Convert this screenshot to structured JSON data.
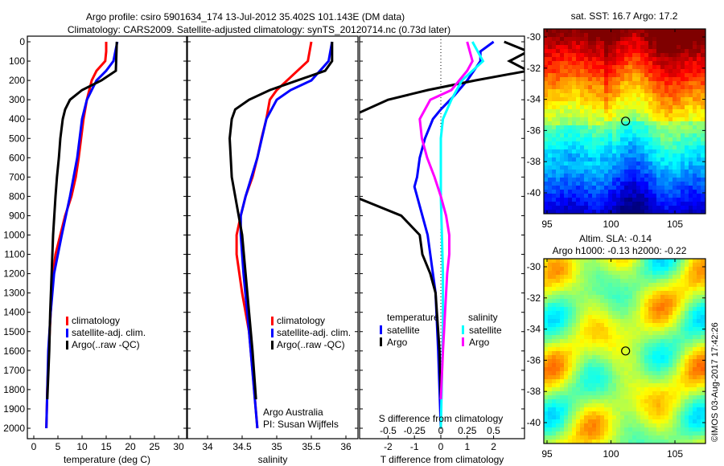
{
  "title_line1": "Argo profile: csiro 5901634_174 13-Jul-2012 35.402S 101.143E (DM data)",
  "title_line2": "Climatology: CARS2009. Satellite-adjusted climatology: synTS_20120714.nc (0.73d later)",
  "side_stamp": "©IMOS 03-Aug-2017 17:42:26",
  "colors": {
    "climatology": "#ff0000",
    "satellite": "#0000ff",
    "argo": "#000000",
    "sal_satellite": "#00ffff",
    "sal_argo": "#ff00ff"
  },
  "chart_data": [
    {
      "type": "line",
      "id": "temperature",
      "xlabel": "temperature (deg C)",
      "ylabel": "depth",
      "xlim": [
        -1.5,
        32
      ],
      "ylim": [
        2060,
        0
      ],
      "xticks": [
        "0",
        "5",
        "10",
        "15",
        "20",
        "25",
        "30"
      ],
      "xtick_values": [
        0,
        5,
        10,
        15,
        20,
        25,
        30
      ],
      "yticks": [
        "0",
        "100",
        "200",
        "300",
        "400",
        "500",
        "600",
        "700",
        "800",
        "900",
        "1000",
        "1100",
        "1200",
        "1300",
        "1400",
        "1500",
        "1600",
        "1700",
        "1800",
        "1900",
        "2000"
      ],
      "legend": [
        "climatology",
        "satellite-adj. clim.",
        "Argo(..raw -QC)"
      ],
      "series": [
        {
          "name": "climatology",
          "color": "#ff0000",
          "depth": [
            0,
            50,
            100,
            150,
            200,
            300,
            400,
            500,
            600,
            700,
            800,
            900,
            1000,
            1100,
            1200,
            1400,
            1600,
            1800,
            2000
          ],
          "values": [
            15,
            15,
            14.8,
            13,
            12,
            11,
            10.3,
            9.8,
            9.3,
            8.7,
            7.8,
            6.5,
            5.5,
            4.5,
            4,
            3.5,
            3.1,
            2.8,
            2.6
          ]
        },
        {
          "name": "satellite-adj. clim.",
          "color": "#0000ff",
          "depth": [
            0,
            100,
            150,
            200,
            300,
            400,
            500,
            600,
            800,
            1000,
            1200,
            1400,
            1600,
            2000
          ],
          "values": [
            17.3,
            16.5,
            15,
            13,
            11,
            10,
            9.5,
            9,
            7.5,
            5.8,
            4.2,
            3.5,
            3,
            2.6
          ]
        },
        {
          "name": "Argo(..raw -QC)",
          "color": "#000000",
          "depth": [
            0,
            150,
            200,
            250,
            300,
            350,
            400,
            500,
            600,
            700,
            800,
            1000,
            1200,
            1400,
            1600,
            1850
          ],
          "values": [
            17.2,
            17,
            14,
            10,
            7.5,
            6.5,
            6,
            5.5,
            5.2,
            4.8,
            4.5,
            4,
            3.7,
            3.4,
            3.2,
            2.8
          ]
        }
      ]
    },
    {
      "type": "line",
      "id": "salinity",
      "xlabel": "salinity",
      "xlim": [
        33.7,
        36.1
      ],
      "ylim": [
        2060,
        0
      ],
      "xticks": [
        "34",
        "34.5",
        "35",
        "35.5",
        "36"
      ],
      "xtick_values": [
        34,
        34.5,
        35,
        35.5,
        36
      ],
      "legend": [
        "climatology",
        "satellite-adj. clim.",
        "Argo(..raw -QC)"
      ],
      "annotation": [
        "Argo Australia",
        "PI: Susan Wijffels"
      ],
      "series": [
        {
          "name": "climatology",
          "color": "#ff0000",
          "depth": [
            0,
            100,
            150,
            250,
            300,
            400,
            500,
            600,
            700,
            800,
            900,
            1000,
            1100,
            1300,
            1500,
            1700,
            2000
          ],
          "values": [
            35.5,
            35.45,
            35.3,
            35.0,
            34.9,
            34.85,
            34.78,
            34.72,
            34.65,
            34.55,
            34.48,
            34.42,
            34.42,
            34.5,
            34.6,
            34.65,
            34.72
          ]
        },
        {
          "name": "satellite-adj. clim.",
          "color": "#0000ff",
          "depth": [
            0,
            100,
            200,
            250,
            300,
            400,
            600,
            800,
            900,
            1000,
            1200,
            1500,
            2000
          ],
          "values": [
            35.8,
            35.75,
            35.5,
            35.2,
            35.0,
            34.85,
            34.72,
            34.55,
            34.48,
            34.48,
            34.52,
            34.6,
            34.72
          ]
        },
        {
          "name": "Argo(..raw -QC)",
          "color": "#000000",
          "depth": [
            0,
            100,
            150,
            200,
            250,
            300,
            350,
            400,
            500,
            700,
            800,
            900,
            1000,
            1200,
            1400,
            1600,
            1850
          ],
          "values": [
            35.8,
            35.8,
            35.7,
            35.3,
            34.9,
            34.6,
            34.4,
            34.35,
            34.32,
            34.35,
            34.4,
            34.45,
            34.5,
            34.55,
            34.6,
            34.65,
            34.7
          ]
        }
      ]
    },
    {
      "type": "line",
      "id": "differences",
      "xlabel": "T difference from climatology",
      "x2label": "S difference from climatology",
      "xlim": [
        -3.2,
        3.2
      ],
      "ylim": [
        2060,
        0
      ],
      "xticks": [
        "-2",
        "-1",
        "0",
        "1",
        "2"
      ],
      "xtick_values": [
        -2,
        -1,
        0,
        1,
        2
      ],
      "x2ticks": [
        "-0.5",
        "-0.25",
        "0",
        "0.25",
        "0.5"
      ],
      "x2tick_values": [
        -0.5,
        -0.25,
        0,
        0.25,
        0.5
      ],
      "legend_temperature": {
        "title": "temperature",
        "items": [
          "satellite",
          "Argo"
        ]
      },
      "legend_salinity": {
        "title": "salinity",
        "items": [
          "satellite",
          "Argo"
        ]
      },
      "series": [
        {
          "name": "T satellite",
          "color": "#0000ff",
          "axis": "T",
          "depth": [
            0,
            50,
            100,
            200,
            280,
            350,
            400,
            500,
            600,
            700,
            750,
            850,
            900,
            1000,
            1100,
            1300,
            1600,
            2000
          ],
          "values": [
            2,
            1.5,
            1.5,
            1,
            0.5,
            0,
            -0.3,
            -0.6,
            -0.8,
            -0.9,
            -1,
            -0.8,
            -0.7,
            -0.5,
            -0.4,
            -0.2,
            -0.1,
            0
          ]
        },
        {
          "name": "T Argo",
          "color": "#000000",
          "axis": "T",
          "depth": [
            0,
            50,
            100,
            150,
            200,
            250,
            300,
            380,
            800,
            900,
            1000,
            1100,
            1200,
            1300,
            1400,
            1600,
            1850
          ],
          "values": [
            2.4,
            3.3,
            2.6,
            3.3,
            1.3,
            -0.5,
            -2,
            -3.3,
            -3.3,
            -1.5,
            -0.8,
            -0.7,
            -0.4,
            -0.2,
            -0.15,
            -0.05,
            0
          ]
        },
        {
          "name": "S satellite",
          "color": "#00ffff",
          "axis": "S",
          "depth": [
            0,
            100,
            200,
            300,
            400,
            500,
            800,
            1200,
            1500,
            2000
          ],
          "values": [
            0.3,
            0.4,
            0.2,
            0.1,
            0.02,
            0,
            0,
            0.02,
            0.02,
            0
          ]
        },
        {
          "name": "S Argo",
          "color": "#ff00ff",
          "axis": "S",
          "depth": [
            0,
            100,
            150,
            250,
            300,
            400,
            500,
            600,
            700,
            800,
            900,
            1000,
            1100,
            1200,
            1400,
            1600,
            1850
          ],
          "values": [
            0.25,
            0.3,
            0.25,
            0.1,
            -0.1,
            -0.2,
            -0.18,
            -0.13,
            -0.06,
            0,
            0.05,
            0.08,
            0.08,
            0.06,
            0.04,
            0.02,
            0
          ]
        }
      ]
    },
    {
      "type": "heatmap",
      "id": "sst_map",
      "title": "sat. SST: 16.7 Argo: 17.2",
      "xticks": [
        "95",
        "100",
        "105"
      ],
      "xtick_values": [
        95,
        100,
        105
      ],
      "yticks": [
        "-30",
        "-32",
        "-34",
        "-36",
        "-38",
        "-40"
      ],
      "ytick_values": [
        -30,
        -32,
        -34,
        -36,
        -38,
        -40
      ],
      "xlim": [
        94.8,
        107.3
      ],
      "ylim": [
        -41.4,
        -29.4
      ],
      "marker": [
        101.143,
        -35.402
      ]
    },
    {
      "type": "heatmap",
      "id": "sla_map",
      "title": "Altim. SLA: -0.14",
      "subtitle": "Argo h1000: -0.13 h2000: -0.22",
      "xticks": [
        "95",
        "100",
        "105"
      ],
      "xtick_values": [
        95,
        100,
        105
      ],
      "yticks": [
        "-30",
        "-32",
        "-34",
        "-36",
        "-38",
        "-40"
      ],
      "ytick_values": [
        -30,
        -32,
        -34,
        -36,
        -38,
        -40
      ],
      "xlim": [
        94.8,
        107.3
      ],
      "ylim": [
        -41.4,
        -29.4
      ],
      "marker": [
        101.143,
        -35.402
      ]
    }
  ]
}
